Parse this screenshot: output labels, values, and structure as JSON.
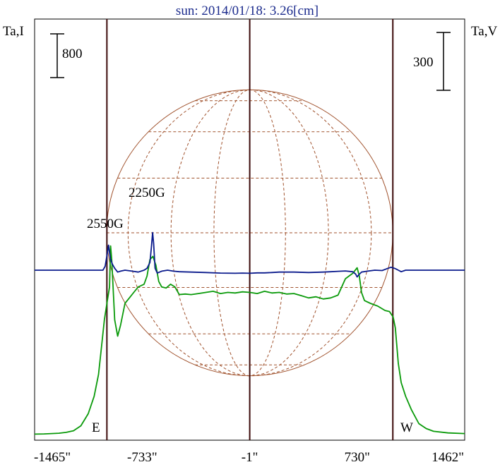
{
  "chart_data": {
    "type": "line",
    "title": "sun: 2014/01/18: 3.26[cm]",
    "ylabel_left": "Ta,I",
    "ylabel_right": "Ta,V",
    "scale_bar_left": "800",
    "scale_bar_right": "300",
    "xlim": [
      -1465,
      1462
    ],
    "x_tick_labels": [
      "-1465\"",
      "-733\"",
      "-1\"",
      "730\"",
      "1462\""
    ],
    "x_tick_values": [
      -1465,
      -733,
      -1,
      730,
      1462
    ],
    "limb_labels": {
      "east": "E",
      "west": "W"
    },
    "limb_positions": [
      -973,
      973
    ],
    "center_position": -1,
    "annotations": [
      {
        "text": "2550G",
        "x": -962
      },
      {
        "text": "2250G",
        "x": -659
      }
    ],
    "colors": {
      "intensity": "#0a9a0a",
      "polarization": "#0a1a8c",
      "disk": "#a0522d",
      "title": "#1a2a8c",
      "limb_lines": "#3c0a0a"
    },
    "series": [
      {
        "name": "Ta,I",
        "color": "#0a9a0a",
        "points": [
          [
            -1465,
            8
          ],
          [
            -1400,
            12
          ],
          [
            -1300,
            25
          ],
          [
            -1250,
            40
          ],
          [
            -1200,
            70
          ],
          [
            -1150,
            160
          ],
          [
            -1100,
            380
          ],
          [
            -1060,
            700
          ],
          [
            -1030,
            1100
          ],
          [
            -1010,
            1600
          ],
          [
            -990,
            2100
          ],
          [
            -970,
            2450
          ],
          [
            -955,
            2700
          ],
          [
            -948,
            3450
          ],
          [
            -940,
            3200
          ],
          [
            -920,
            2100
          ],
          [
            -900,
            1800
          ],
          [
            -880,
            2000
          ],
          [
            -850,
            2400
          ],
          [
            -820,
            2500
          ],
          [
            -790,
            2600
          ],
          [
            -760,
            2700
          ],
          [
            -720,
            2750
          ],
          [
            -700,
            2900
          ],
          [
            -680,
            3200
          ],
          [
            -660,
            3260
          ],
          [
            -640,
            3100
          ],
          [
            -620,
            2800
          ],
          [
            -600,
            2700
          ],
          [
            -570,
            2680
          ],
          [
            -540,
            2750
          ],
          [
            -510,
            2700
          ],
          [
            -480,
            2560
          ],
          [
            -440,
            2570
          ],
          [
            -400,
            2560
          ],
          [
            -350,
            2580
          ],
          [
            -300,
            2600
          ],
          [
            -250,
            2620
          ],
          [
            -200,
            2580
          ],
          [
            -150,
            2600
          ],
          [
            -100,
            2590
          ],
          [
            -50,
            2610
          ],
          [
            0,
            2600
          ],
          [
            50,
            2580
          ],
          [
            100,
            2620
          ],
          [
            150,
            2590
          ],
          [
            200,
            2600
          ],
          [
            250,
            2570
          ],
          [
            300,
            2580
          ],
          [
            350,
            2540
          ],
          [
            400,
            2500
          ],
          [
            450,
            2520
          ],
          [
            500,
            2480
          ],
          [
            550,
            2500
          ],
          [
            600,
            2550
          ],
          [
            650,
            2850
          ],
          [
            700,
            2950
          ],
          [
            730,
            3050
          ],
          [
            745,
            2900
          ],
          [
            760,
            2600
          ],
          [
            780,
            2450
          ],
          [
            820,
            2400
          ],
          [
            870,
            2350
          ],
          [
            920,
            2270
          ],
          [
            950,
            2250
          ],
          [
            975,
            2150
          ],
          [
            990,
            1950
          ],
          [
            1010,
            1300
          ],
          [
            1030,
            950
          ],
          [
            1060,
            700
          ],
          [
            1100,
            450
          ],
          [
            1150,
            200
          ],
          [
            1200,
            110
          ],
          [
            1250,
            60
          ],
          [
            1350,
            30
          ],
          [
            1462,
            18
          ]
        ]
      },
      {
        "name": "Ta,V",
        "color": "#0a1a8c",
        "points": [
          [
            -1465,
            0
          ],
          [
            -1000,
            0
          ],
          [
            -985,
            20
          ],
          [
            -972,
            80
          ],
          [
            -962,
            130
          ],
          [
            -950,
            60
          ],
          [
            -935,
            30
          ],
          [
            -920,
            10
          ],
          [
            -900,
            -10
          ],
          [
            -880,
            -5
          ],
          [
            -850,
            0
          ],
          [
            -800,
            -5
          ],
          [
            -760,
            -10
          ],
          [
            -720,
            0
          ],
          [
            -700,
            10
          ],
          [
            -680,
            40
          ],
          [
            -670,
            120
          ],
          [
            -662,
            195
          ],
          [
            -655,
            140
          ],
          [
            -645,
            10
          ],
          [
            -630,
            -15
          ],
          [
            -600,
            -5
          ],
          [
            -560,
            0
          ],
          [
            -520,
            -5
          ],
          [
            -480,
            -8
          ],
          [
            -400,
            -10
          ],
          [
            -300,
            -12
          ],
          [
            -200,
            -15
          ],
          [
            -100,
            -16
          ],
          [
            -50,
            -15
          ],
          [
            0,
            -16
          ],
          [
            50,
            -14
          ],
          [
            100,
            -14
          ],
          [
            150,
            -12
          ],
          [
            200,
            -10
          ],
          [
            300,
            -10
          ],
          [
            400,
            -12
          ],
          [
            500,
            -10
          ],
          [
            550,
            -8
          ],
          [
            600,
            -6
          ],
          [
            650,
            -4
          ],
          [
            700,
            -8
          ],
          [
            720,
            -20
          ],
          [
            730,
            -35
          ],
          [
            740,
            -25
          ],
          [
            760,
            -10
          ],
          [
            800,
            -5
          ],
          [
            850,
            0
          ],
          [
            900,
            -2
          ],
          [
            940,
            10
          ],
          [
            960,
            15
          ],
          [
            975,
            12
          ],
          [
            990,
            8
          ],
          [
            1010,
            0
          ],
          [
            1030,
            -8
          ],
          [
            1060,
            0
          ],
          [
            1462,
            0
          ]
        ]
      }
    ]
  }
}
